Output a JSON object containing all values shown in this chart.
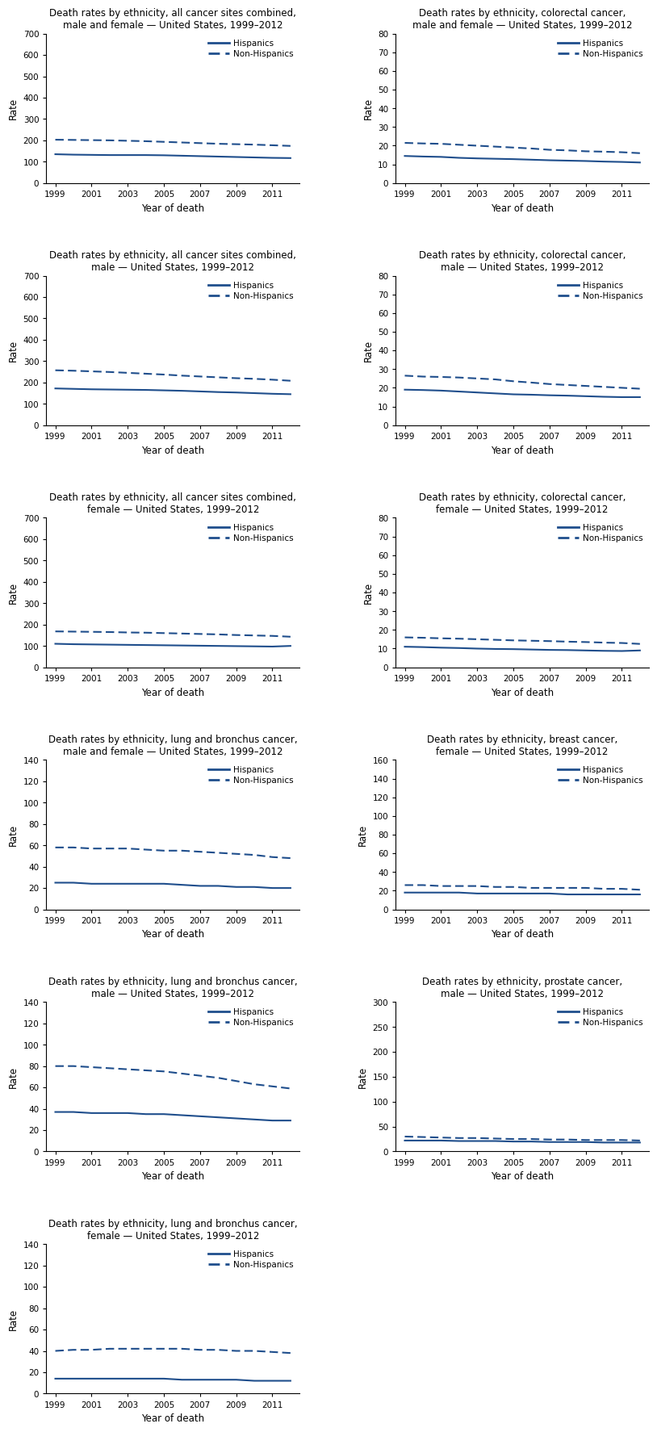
{
  "years": [
    1999,
    2000,
    2001,
    2002,
    2003,
    2004,
    2005,
    2006,
    2007,
    2008,
    2009,
    2010,
    2011,
    2012
  ],
  "charts": [
    {
      "title": "Death rates by ethnicity, all cancer sites combined,\nmale and female — United States, 1999–2012",
      "ylim": [
        0,
        700
      ],
      "yticks": [
        0,
        100,
        200,
        300,
        400,
        500,
        600,
        700
      ],
      "hispanic": [
        135,
        133,
        132,
        131,
        131,
        131,
        130,
        128,
        126,
        124,
        122,
        120,
        118,
        117
      ],
      "nonhispanic": [
        203,
        202,
        201,
        200,
        198,
        196,
        193,
        190,
        187,
        184,
        182,
        180,
        177,
        174
      ],
      "legend_loc": "upper right",
      "row": 0,
      "col": 0
    },
    {
      "title": "Death rates by ethnicity, colorectal cancer,\nmale and female — United States, 1999–2012",
      "ylim": [
        0,
        80
      ],
      "yticks": [
        0,
        10,
        20,
        30,
        40,
        50,
        60,
        70,
        80
      ],
      "hispanic": [
        14.5,
        14.2,
        14.0,
        13.5,
        13.2,
        13.0,
        12.8,
        12.5,
        12.2,
        12.0,
        11.8,
        11.5,
        11.3,
        11.0
      ],
      "nonhispanic": [
        21.5,
        21.2,
        21.0,
        20.5,
        20.0,
        19.5,
        19.0,
        18.5,
        17.8,
        17.5,
        17.0,
        16.8,
        16.5,
        16.0
      ],
      "legend_loc": "upper right",
      "row": 0,
      "col": 1
    },
    {
      "title": "Death rates by ethnicity, all cancer sites combined,\nmale — United States, 1999–2012",
      "ylim": [
        0,
        700
      ],
      "yticks": [
        0,
        100,
        200,
        300,
        400,
        500,
        600,
        700
      ],
      "hispanic": [
        172,
        170,
        168,
        167,
        166,
        165,
        163,
        161,
        158,
        155,
        153,
        150,
        147,
        145
      ],
      "nonhispanic": [
        257,
        255,
        252,
        249,
        245,
        241,
        237,
        232,
        228,
        224,
        220,
        217,
        213,
        208
      ],
      "legend_loc": "upper right",
      "row": 1,
      "col": 0
    },
    {
      "title": "Death rates by ethnicity, colorectal cancer,\nmale — United States, 1999–2012",
      "ylim": [
        0,
        80
      ],
      "yticks": [
        0,
        10,
        20,
        30,
        40,
        50,
        60,
        70,
        80
      ],
      "hispanic": [
        19.0,
        18.8,
        18.5,
        18.0,
        17.5,
        17.0,
        16.5,
        16.3,
        16.0,
        15.8,
        15.5,
        15.2,
        15.0,
        15.0
      ],
      "nonhispanic": [
        26.5,
        26.0,
        25.8,
        25.5,
        25.0,
        24.5,
        23.5,
        22.8,
        22.0,
        21.5,
        21.0,
        20.5,
        20.0,
        19.5
      ],
      "legend_loc": "upper right",
      "row": 1,
      "col": 1
    },
    {
      "title": "Death rates by ethnicity, all cancer sites combined,\nfemale — United States, 1999–2012",
      "ylim": [
        0,
        700
      ],
      "yticks": [
        0,
        100,
        200,
        300,
        400,
        500,
        600,
        700
      ],
      "hispanic": [
        110,
        108,
        107,
        106,
        105,
        104,
        103,
        102,
        101,
        100,
        99,
        98,
        97,
        100
      ],
      "nonhispanic": [
        168,
        167,
        166,
        165,
        163,
        162,
        160,
        158,
        156,
        154,
        151,
        149,
        147,
        143
      ],
      "legend_loc": "upper right",
      "row": 2,
      "col": 0
    },
    {
      "title": "Death rates by ethnicity, colorectal cancer,\nfemale — United States, 1999–2012",
      "ylim": [
        0,
        80
      ],
      "yticks": [
        0,
        10,
        20,
        30,
        40,
        50,
        60,
        70,
        80
      ],
      "hispanic": [
        11.0,
        10.8,
        10.5,
        10.3,
        10.0,
        9.8,
        9.7,
        9.5,
        9.3,
        9.2,
        9.0,
        8.8,
        8.7,
        9.0
      ],
      "nonhispanic": [
        16.0,
        15.8,
        15.5,
        15.3,
        15.0,
        14.7,
        14.4,
        14.2,
        14.0,
        13.7,
        13.5,
        13.2,
        13.0,
        12.5
      ],
      "legend_loc": "upper right",
      "row": 2,
      "col": 1
    },
    {
      "title": "Death rates by ethnicity, lung and bronchus cancer,\nmale and female — United States, 1999–2012",
      "ylim": [
        0,
        140
      ],
      "yticks": [
        0,
        20,
        40,
        60,
        80,
        100,
        120,
        140
      ],
      "hispanic": [
        25,
        25,
        24,
        24,
        24,
        24,
        24,
        23,
        22,
        22,
        21,
        21,
        20,
        20
      ],
      "nonhispanic": [
        58,
        58,
        57,
        57,
        57,
        56,
        55,
        55,
        54,
        53,
        52,
        51,
        49,
        48
      ],
      "legend_loc": "upper right",
      "row": 3,
      "col": 0
    },
    {
      "title": "Death rates by ethnicity, breast cancer,\nfemale — United States, 1999–2012",
      "ylim": [
        0,
        160
      ],
      "yticks": [
        0,
        20,
        40,
        60,
        80,
        100,
        120,
        140,
        160
      ],
      "hispanic": [
        18,
        18,
        18,
        18,
        17,
        17,
        17,
        17,
        17,
        16,
        16,
        16,
        16,
        16
      ],
      "nonhispanic": [
        26,
        26,
        25,
        25,
        25,
        24,
        24,
        23,
        23,
        23,
        23,
        22,
        22,
        21
      ],
      "legend_loc": "upper right",
      "row": 3,
      "col": 1
    },
    {
      "title": "Death rates by ethnicity, lung and bronchus cancer,\nmale — United States, 1999–2012",
      "ylim": [
        0,
        140
      ],
      "yticks": [
        0,
        20,
        40,
        60,
        80,
        100,
        120,
        140
      ],
      "hispanic": [
        37,
        37,
        36,
        36,
        36,
        35,
        35,
        34,
        33,
        32,
        31,
        30,
        29,
        29
      ],
      "nonhispanic": [
        80,
        80,
        79,
        78,
        77,
        76,
        75,
        73,
        71,
        69,
        66,
        63,
        61,
        59
      ],
      "legend_loc": "upper right",
      "row": 4,
      "col": 0
    },
    {
      "title": "Death rates by ethnicity, prostate cancer,\nmale — United States, 1999–2012",
      "ylim": [
        0,
        300
      ],
      "yticks": [
        0,
        50,
        100,
        150,
        200,
        250,
        300
      ],
      "hispanic": [
        22,
        22,
        22,
        21,
        21,
        21,
        20,
        20,
        19,
        19,
        19,
        18,
        18,
        18
      ],
      "nonhispanic": [
        30,
        29,
        28,
        27,
        27,
        26,
        25,
        25,
        24,
        24,
        23,
        23,
        23,
        22
      ],
      "legend_loc": "upper right",
      "row": 4,
      "col": 1
    },
    {
      "title": "Death rates by ethnicity, lung and bronchus cancer,\nfemale — United States, 1999–2012",
      "ylim": [
        0,
        140
      ],
      "yticks": [
        0,
        20,
        40,
        60,
        80,
        100,
        120,
        140
      ],
      "hispanic": [
        14,
        14,
        14,
        14,
        14,
        14,
        14,
        13,
        13,
        13,
        13,
        12,
        12,
        12
      ],
      "nonhispanic": [
        40,
        41,
        41,
        42,
        42,
        42,
        42,
        42,
        41,
        41,
        40,
        40,
        39,
        38
      ],
      "legend_loc": "upper right",
      "row": 5,
      "col": 0
    }
  ],
  "hispanic_color": "#1f4e8c",
  "nonhispanic_color": "#1f4e8c",
  "line_width": 1.5,
  "xlabel": "Year of death",
  "ylabel": "Rate",
  "xticks": [
    1999,
    2001,
    2003,
    2005,
    2007,
    2009,
    2011
  ],
  "background_color": "#ffffff"
}
